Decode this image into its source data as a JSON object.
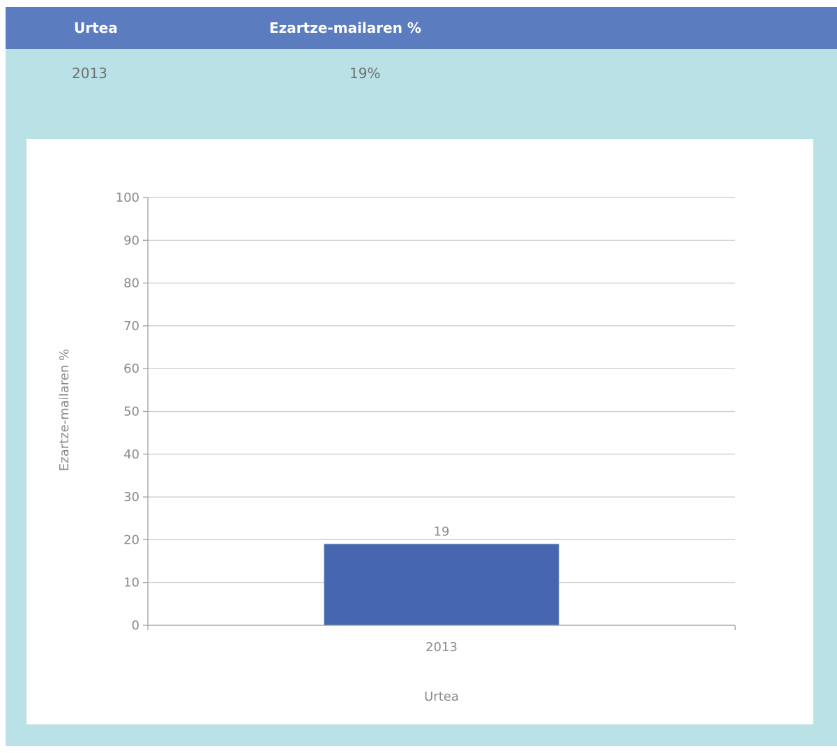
{
  "table": {
    "headers": [
      "Urtea",
      "Ezartze-mailaren %"
    ],
    "rows": [
      [
        "2013",
        "19%"
      ]
    ]
  },
  "colors": {
    "header_bg": "#5b7dbf",
    "panel_bg": "#b9e1e6",
    "bar": "#4667b0",
    "gridline": "#c8c8c8",
    "axis_text": "#8a8a8a"
  },
  "chart_data": {
    "type": "bar",
    "categories": [
      "2013"
    ],
    "values": [
      19
    ],
    "data_labels": [
      "19"
    ],
    "xlabel": "Urtea",
    "ylabel": "Ezartze-mailaren %",
    "ylim": [
      0,
      100
    ],
    "yticks": [
      0,
      10,
      20,
      30,
      40,
      50,
      60,
      70,
      80,
      90,
      100
    ],
    "grid": true,
    "legend": "none"
  }
}
